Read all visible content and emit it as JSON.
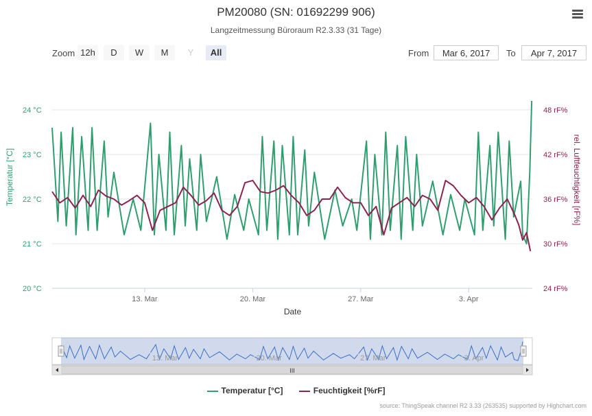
{
  "header": {
    "title": "PM20080 (SN: 01692299 906)",
    "subtitle": "Langzeitmessung Büroraum R2.3.33 (31 Tage)"
  },
  "range_selector": {
    "zoom_label": "Zoom",
    "buttons": [
      {
        "label": "12h",
        "state": "normal"
      },
      {
        "label": "D",
        "state": "normal"
      },
      {
        "label": "W",
        "state": "normal"
      },
      {
        "label": "M",
        "state": "normal"
      },
      {
        "label": "Y",
        "state": "disabled"
      },
      {
        "label": "All",
        "state": "selected"
      }
    ],
    "from_label": "From",
    "from_value": "Mar 6, 2017",
    "to_label": "To",
    "to_value": "Apr 7, 2017"
  },
  "chart_data": {
    "type": "line",
    "xlabel": "Date",
    "x_range": [
      "2017-03-07",
      "2017-04-07"
    ],
    "x_ticks": [
      "13. Mar",
      "20. Mar",
      "27. Mar",
      "3. Apr"
    ],
    "y_left": {
      "label": "Temperatur [°C]",
      "ticks": [
        "20 °C",
        "21 °C",
        "22 °C",
        "23 °C",
        "24 °C"
      ],
      "range": [
        20,
        24
      ]
    },
    "y_right": {
      "label": "rel. Luftfeuchtigkeit [rF%]",
      "ticks": [
        "24 rF%",
        "30 rF%",
        "36 rF%",
        "42 rF%",
        "48 rF%"
      ],
      "range": [
        24,
        48
      ]
    },
    "grid": true,
    "legend_position": "bottom",
    "series": [
      {
        "name": "Temperatur [°C]",
        "axis": "left",
        "color": "#2f9e6e",
        "x": [
          "03-07 00:00",
          "03-07 09:00",
          "03-07 14:00",
          "03-07 22:00",
          "03-08 08:00",
          "03-08 13:00",
          "03-08 22:00",
          "03-09 08:00",
          "03-09 14:00",
          "03-09 22:00",
          "03-10 09:00",
          "03-10 15:00",
          "03-11 00:00",
          "03-11 16:00",
          "03-12 06:00",
          "03-12 18:00",
          "03-13 09:00",
          "03-13 15:00",
          "03-13 22:00",
          "03-14 09:00",
          "03-14 15:00",
          "03-14 22:00",
          "03-15 09:00",
          "03-15 15:00",
          "03-15 22:00",
          "03-16 09:00",
          "03-16 15:00",
          "03-17 00:00",
          "03-17 16:00",
          "03-18 08:00",
          "03-18 20:00",
          "03-19 10:00",
          "03-19 18:00",
          "03-20 09:00",
          "03-20 15:00",
          "03-20 22:00",
          "03-21 09:00",
          "03-21 15:00",
          "03-21 22:00",
          "03-22 09:00",
          "03-22 15:00",
          "03-22 22:00",
          "03-23 09:00",
          "03-23 15:00",
          "03-24 00:00",
          "03-24 16:00",
          "03-25 08:00",
          "03-25 20:00",
          "03-26 10:00",
          "03-26 18:00",
          "03-27 09:00",
          "03-27 15:00",
          "03-27 22:00",
          "03-28 09:00",
          "03-28 15:00",
          "03-28 22:00",
          "03-29 09:00",
          "03-29 15:00",
          "03-29 22:00",
          "03-30 09:00",
          "03-30 15:00",
          "03-31 00:00",
          "03-31 16:00",
          "04-01 08:00",
          "04-01 20:00",
          "04-02 10:00",
          "04-02 18:00",
          "04-03 09:00",
          "04-03 15:00",
          "04-03 22:00",
          "04-04 09:00",
          "04-04 15:00",
          "04-04 22:00",
          "04-05 09:00",
          "04-05 15:00",
          "04-05 22:00",
          "04-06 09:00",
          "04-06 12:00",
          "04-06 18:00",
          "04-06 23:00",
          "04-07 02:00"
        ],
        "values": [
          23.6,
          21.5,
          23.5,
          21.4,
          23.6,
          21.2,
          23.4,
          21.3,
          23.6,
          21.3,
          23.3,
          21.6,
          22.6,
          21.2,
          22.0,
          21.3,
          23.7,
          21.2,
          23.0,
          21.3,
          23.5,
          21.2,
          23.2,
          21.4,
          22.9,
          21.3,
          23.0,
          21.5,
          22.5,
          21.1,
          22.1,
          21.3,
          22.0,
          21.2,
          23.4,
          21.3,
          23.3,
          21.1,
          23.2,
          21.2,
          23.4,
          21.2,
          23.1,
          21.4,
          22.6,
          21.1,
          22.2,
          21.4,
          22.0,
          21.3,
          23.3,
          21.1,
          23.0,
          21.2,
          23.5,
          21.3,
          23.2,
          21.1,
          23.4,
          21.3,
          23.0,
          21.4,
          22.4,
          21.2,
          22.1,
          21.3,
          22.0,
          21.2,
          23.5,
          21.3,
          23.2,
          21.4,
          23.5,
          21.1,
          23.3,
          21.6,
          22.4,
          21.2,
          21.0,
          22.6,
          24.2
        ]
      },
      {
        "name": "Feuchtigkeit [%rF]",
        "axis": "right",
        "color": "#8b2252",
        "x": [
          "03-07 00:00",
          "03-07 12:00",
          "03-08 00:00",
          "03-08 12:00",
          "03-09 00:00",
          "03-09 12:00",
          "03-10 00:00",
          "03-10 12:00",
          "03-11 00:00",
          "03-11 12:00",
          "03-12 00:00",
          "03-12 12:00",
          "03-13 00:00",
          "03-13 12:00",
          "03-14 00:00",
          "03-14 12:00",
          "03-15 00:00",
          "03-15 12:00",
          "03-16 00:00",
          "03-16 12:00",
          "03-17 00:00",
          "03-17 12:00",
          "03-18 00:00",
          "03-18 12:00",
          "03-19 00:00",
          "03-19 12:00",
          "03-20 00:00",
          "03-20 12:00",
          "03-21 00:00",
          "03-21 12:00",
          "03-22 00:00",
          "03-22 12:00",
          "03-23 00:00",
          "03-23 12:00",
          "03-24 00:00",
          "03-24 12:00",
          "03-25 00:00",
          "03-25 12:00",
          "03-26 00:00",
          "03-26 12:00",
          "03-27 00:00",
          "03-27 12:00",
          "03-28 00:00",
          "03-28 12:00",
          "03-29 00:00",
          "03-29 12:00",
          "03-30 00:00",
          "03-30 12:00",
          "03-31 00:00",
          "03-31 12:00",
          "04-01 00:00",
          "04-01 12:00",
          "04-02 00:00",
          "04-02 12:00",
          "04-03 00:00",
          "04-03 12:00",
          "04-04 00:00",
          "04-04 12:00",
          "04-05 00:00",
          "04-05 12:00",
          "04-06 00:00",
          "04-06 06:00",
          "04-06 12:00",
          "04-06 18:00",
          "04-07 00:00"
        ],
        "values": [
          37.0,
          35.5,
          36.2,
          34.8,
          36.5,
          35.0,
          37.2,
          36.4,
          36.0,
          35.2,
          35.8,
          36.5,
          35.5,
          31.8,
          34.5,
          35.0,
          35.5,
          37.6,
          36.5,
          35.2,
          35.8,
          36.8,
          34.5,
          33.8,
          35.0,
          38.2,
          38.5,
          37.0,
          36.8,
          37.2,
          37.8,
          36.5,
          35.5,
          33.8,
          34.5,
          36.0,
          36.0,
          37.6,
          36.2,
          35.5,
          35.5,
          33.8,
          35.0,
          31.2,
          34.8,
          35.5,
          36.2,
          35.0,
          36.5,
          36.0,
          34.5,
          38.5,
          37.8,
          36.5,
          35.5,
          36.2,
          35.0,
          33.2,
          34.8,
          36.0,
          33.8,
          32.5,
          30.5,
          31.5,
          29.0
        ]
      }
    ]
  },
  "navigator": {
    "x_ticks": [
      "13. Mar",
      "20. Mar",
      "27. Mar",
      "3. Apr"
    ],
    "scroll_grip": "III"
  },
  "legend": {
    "items": [
      {
        "label": "Temperatur [°C]",
        "color": "#2f9e6e"
      },
      {
        "label": "Feuchtigkeit [%rF]",
        "color": "#8b2252"
      }
    ]
  },
  "footer": {
    "source": "source: ThingSpeak channel R2 3.33 (263535) supported by Highchart.com"
  }
}
